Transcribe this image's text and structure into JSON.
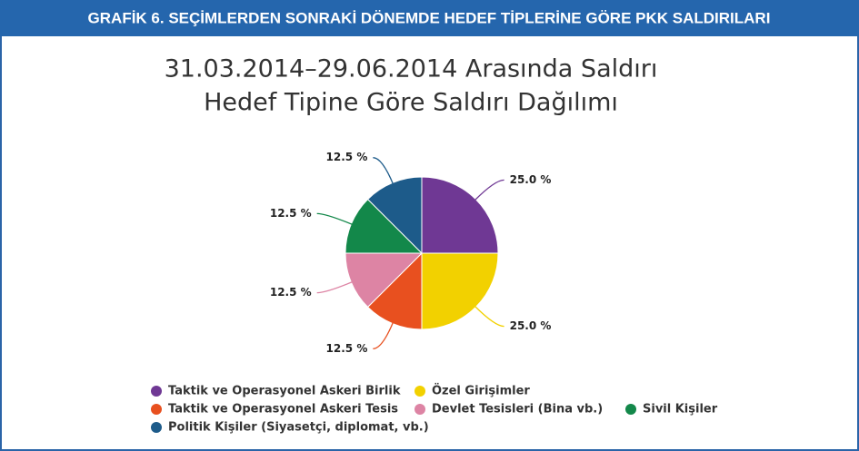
{
  "header": "GRAFİK 6. SEÇİMLERDEN SONRAKİ DÖNEMDE HEDEF TİPLERİNE GÖRE PKK SALDIRILARI",
  "chart_data": {
    "type": "pie",
    "title": [
      "31.03.2014–29.06.2014 Arasında Saldırı",
      "Hedef Tipine Göre Saldırı Dağılımı"
    ],
    "categories": [
      "Taktik ve Operasyonel Askeri Birlik",
      "Özel Girişimler",
      "Taktik ve Operasyonel Askeri Tesis",
      "Devlet Tesisleri (Bina vb.)",
      "Sivil Kişiler",
      "Politik Kişiler (Siyasetçi, diplomat, vb.)"
    ],
    "values": [
      25.0,
      25.0,
      12.5,
      12.5,
      12.5,
      12.5
    ],
    "value_labels": [
      "25.0 %",
      "25.0 %",
      "12.5 %",
      "12.5 %",
      "12.5 %",
      "12.5 %"
    ],
    "colors": [
      "#6f3894",
      "#f2d100",
      "#e8501f",
      "#dd84a4",
      "#13884a",
      "#1d5b8a"
    ],
    "legend": "bottom-left"
  }
}
